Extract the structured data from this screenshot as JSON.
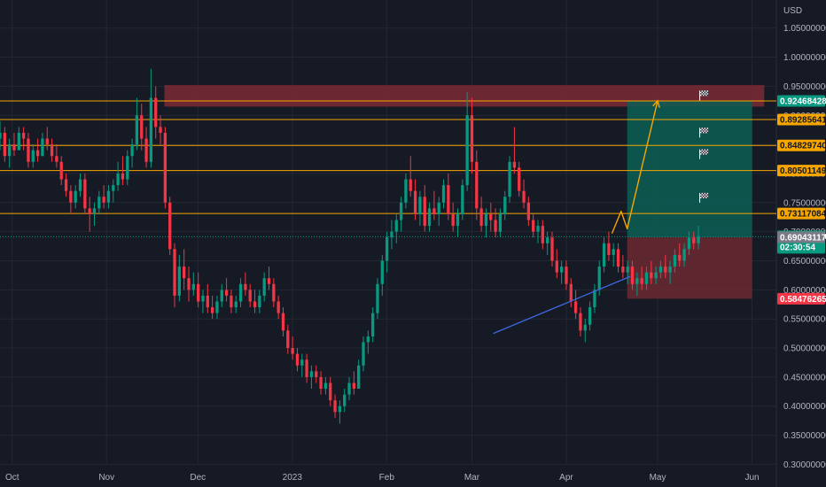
{
  "chart_data": {
    "type": "candlestick",
    "currency_label": "USD",
    "y_ticks": [
      "1.05000000",
      "1.00000000",
      "0.95000000",
      "0.90000000",
      "0.85000000",
      "0.80000000",
      "0.75000000",
      "0.70000000",
      "0.65000000",
      "0.60000000",
      "0.55000000",
      "0.50000000",
      "0.45000000",
      "0.40000000",
      "0.35000000",
      "0.30000000"
    ],
    "ylim": [
      0.29,
      1.08
    ],
    "x_ticks": [
      "Oct",
      "Nov",
      "Dec",
      "2023",
      "Feb",
      "Mar",
      "Apr",
      "May",
      "Jun"
    ],
    "x_tick_dates": [
      "2022-10-01",
      "2022-11-01",
      "2022-12-01",
      "2023-01-01",
      "2023-02-01",
      "2023-03-01",
      "2023-04-01",
      "2023-05-01",
      "2023-06-01"
    ],
    "xlim": [
      "2022-09-27",
      "2023-06-09"
    ],
    "horizontal_levels": [
      0.92468428,
      0.89285641,
      0.8482974,
      0.80501149,
      0.73117084
    ],
    "level_color": "#f7a600",
    "supply_zone": {
      "from": "2022-11-20",
      "to": "2023-06-05",
      "low": 0.915,
      "high": 0.952,
      "color": "#7a2a35"
    },
    "position": {
      "start": "2023-04-21",
      "end": "2023-06-01",
      "entry": 0.69043117,
      "target": 0.92468428,
      "stop": 0.58476265,
      "profit_color": "#0c5f55",
      "loss_color": "#6b2a33"
    },
    "trendline": {
      "from": [
        "2023-03-08",
        0.525
      ],
      "to": [
        "2023-04-22",
        0.623
      ],
      "color": "#3d66e0"
    },
    "projection": {
      "points": [
        [
          "2023-04-16",
          0.697
        ],
        [
          "2023-04-19",
          0.735
        ],
        [
          "2023-04-21",
          0.705
        ],
        [
          "2023-05-01",
          0.925
        ]
      ],
      "color": "#f7a600"
    },
    "target_flags": [
      [
        "2023-05-16",
        0.935
      ],
      [
        "2023-05-16",
        0.871
      ],
      [
        "2023-05-16",
        0.834
      ],
      [
        "2023-05-16",
        0.759
      ]
    ],
    "price_tags": [
      {
        "label": "0.92468428",
        "value": 0.92468428,
        "bg": "#089981",
        "fg": "#ffffff"
      },
      {
        "label": "0.89285641",
        "value": 0.89285641,
        "bg": "#f7a600",
        "fg": "#131722"
      },
      {
        "label": "0.84829740",
        "value": 0.8482974,
        "bg": "#f7a600",
        "fg": "#131722"
      },
      {
        "label": "0.80501149",
        "value": 0.80501149,
        "bg": "#f7a600",
        "fg": "#131722"
      },
      {
        "label": "0.73117084",
        "value": 0.73117084,
        "bg": "#f7a600",
        "fg": "#131722"
      },
      {
        "label": "0.69124789",
        "value": 0.69124789,
        "bg": "#089981",
        "fg": "#ffffff",
        "sub": "02:30:54"
      },
      {
        "label": "0.69043117",
        "value": 0.69043117,
        "bg": "#787b86",
        "fg": "#ffffff"
      },
      {
        "label": "0.58476265",
        "value": 0.58476265,
        "bg": "#f23645",
        "fg": "#ffffff"
      }
    ],
    "last_price": 0.69124789,
    "up_color": "#089981",
    "down_color": "#f23645",
    "candle_start": "2022-09-27",
    "candles": [
      [
        0.86,
        0.89,
        0.84,
        0.87
      ],
      [
        0.87,
        0.88,
        0.82,
        0.83
      ],
      [
        0.83,
        0.86,
        0.81,
        0.85
      ],
      [
        0.85,
        0.87,
        0.83,
        0.84
      ],
      [
        0.84,
        0.88,
        0.84,
        0.87
      ],
      [
        0.87,
        0.88,
        0.84,
        0.86
      ],
      [
        0.86,
        0.87,
        0.81,
        0.82
      ],
      [
        0.82,
        0.85,
        0.81,
        0.84
      ],
      [
        0.84,
        0.86,
        0.82,
        0.83
      ],
      [
        0.83,
        0.87,
        0.83,
        0.86
      ],
      [
        0.86,
        0.88,
        0.84,
        0.85
      ],
      [
        0.85,
        0.86,
        0.82,
        0.83
      ],
      [
        0.83,
        0.85,
        0.81,
        0.82
      ],
      [
        0.82,
        0.83,
        0.78,
        0.79
      ],
      [
        0.79,
        0.8,
        0.76,
        0.77
      ],
      [
        0.77,
        0.78,
        0.73,
        0.75
      ],
      [
        0.75,
        0.78,
        0.74,
        0.77
      ],
      [
        0.77,
        0.8,
        0.76,
        0.79
      ],
      [
        0.79,
        0.8,
        0.73,
        0.74
      ],
      [
        0.74,
        0.76,
        0.7,
        0.73
      ],
      [
        0.73,
        0.75,
        0.71,
        0.74
      ],
      [
        0.74,
        0.77,
        0.73,
        0.76
      ],
      [
        0.76,
        0.78,
        0.74,
        0.75
      ],
      [
        0.75,
        0.78,
        0.74,
        0.77
      ],
      [
        0.77,
        0.79,
        0.75,
        0.78
      ],
      [
        0.78,
        0.82,
        0.77,
        0.8
      ],
      [
        0.8,
        0.83,
        0.78,
        0.79
      ],
      [
        0.79,
        0.84,
        0.78,
        0.83
      ],
      [
        0.83,
        0.86,
        0.81,
        0.85
      ],
      [
        0.85,
        0.93,
        0.84,
        0.9
      ],
      [
        0.9,
        0.92,
        0.84,
        0.86
      ],
      [
        0.86,
        0.88,
        0.81,
        0.82
      ],
      [
        0.82,
        0.98,
        0.81,
        0.93
      ],
      [
        0.93,
        0.95,
        0.86,
        0.88
      ],
      [
        0.88,
        0.9,
        0.85,
        0.87
      ],
      [
        0.87,
        0.88,
        0.74,
        0.75
      ],
      [
        0.75,
        0.76,
        0.66,
        0.67
      ],
      [
        0.67,
        0.68,
        0.57,
        0.59
      ],
      [
        0.59,
        0.66,
        0.58,
        0.64
      ],
      [
        0.64,
        0.67,
        0.6,
        0.62
      ],
      [
        0.62,
        0.64,
        0.58,
        0.6
      ],
      [
        0.6,
        0.63,
        0.59,
        0.61
      ],
      [
        0.61,
        0.63,
        0.57,
        0.58
      ],
      [
        0.58,
        0.6,
        0.56,
        0.59
      ],
      [
        0.59,
        0.61,
        0.56,
        0.57
      ],
      [
        0.57,
        0.59,
        0.55,
        0.56
      ],
      [
        0.56,
        0.59,
        0.55,
        0.58
      ],
      [
        0.58,
        0.61,
        0.57,
        0.6
      ],
      [
        0.6,
        0.62,
        0.58,
        0.59
      ],
      [
        0.59,
        0.6,
        0.56,
        0.57
      ],
      [
        0.57,
        0.59,
        0.56,
        0.58
      ],
      [
        0.58,
        0.62,
        0.57,
        0.61
      ],
      [
        0.61,
        0.63,
        0.59,
        0.6
      ],
      [
        0.6,
        0.61,
        0.57,
        0.58
      ],
      [
        0.58,
        0.6,
        0.56,
        0.57
      ],
      [
        0.57,
        0.6,
        0.56,
        0.59
      ],
      [
        0.59,
        0.63,
        0.58,
        0.62
      ],
      [
        0.62,
        0.64,
        0.6,
        0.61
      ],
      [
        0.61,
        0.62,
        0.57,
        0.58
      ],
      [
        0.58,
        0.59,
        0.55,
        0.56
      ],
      [
        0.56,
        0.57,
        0.52,
        0.53
      ],
      [
        0.53,
        0.54,
        0.49,
        0.5
      ],
      [
        0.5,
        0.52,
        0.48,
        0.49
      ],
      [
        0.49,
        0.5,
        0.46,
        0.47
      ],
      [
        0.47,
        0.49,
        0.45,
        0.48
      ],
      [
        0.48,
        0.49,
        0.44,
        0.45
      ],
      [
        0.45,
        0.47,
        0.43,
        0.46
      ],
      [
        0.46,
        0.47,
        0.44,
        0.45
      ],
      [
        0.45,
        0.46,
        0.42,
        0.43
      ],
      [
        0.43,
        0.45,
        0.42,
        0.44
      ],
      [
        0.44,
        0.45,
        0.4,
        0.41
      ],
      [
        0.41,
        0.42,
        0.38,
        0.39
      ],
      [
        0.39,
        0.41,
        0.37,
        0.4
      ],
      [
        0.4,
        0.43,
        0.39,
        0.42
      ],
      [
        0.42,
        0.45,
        0.41,
        0.44
      ],
      [
        0.44,
        0.46,
        0.42,
        0.43
      ],
      [
        0.43,
        0.48,
        0.43,
        0.47
      ],
      [
        0.47,
        0.52,
        0.46,
        0.51
      ],
      [
        0.51,
        0.53,
        0.49,
        0.52
      ],
      [
        0.52,
        0.57,
        0.51,
        0.56
      ],
      [
        0.56,
        0.62,
        0.55,
        0.61
      ],
      [
        0.61,
        0.66,
        0.59,
        0.65
      ],
      [
        0.65,
        0.7,
        0.63,
        0.69
      ],
      [
        0.69,
        0.72,
        0.67,
        0.7
      ],
      [
        0.7,
        0.73,
        0.68,
        0.72
      ],
      [
        0.72,
        0.76,
        0.7,
        0.75
      ],
      [
        0.75,
        0.8,
        0.74,
        0.79
      ],
      [
        0.79,
        0.83,
        0.76,
        0.77
      ],
      [
        0.77,
        0.79,
        0.72,
        0.73
      ],
      [
        0.73,
        0.77,
        0.71,
        0.76
      ],
      [
        0.76,
        0.78,
        0.7,
        0.71
      ],
      [
        0.71,
        0.75,
        0.7,
        0.74
      ],
      [
        0.74,
        0.77,
        0.72,
        0.73
      ],
      [
        0.73,
        0.76,
        0.71,
        0.75
      ],
      [
        0.75,
        0.79,
        0.74,
        0.78
      ],
      [
        0.78,
        0.8,
        0.72,
        0.73
      ],
      [
        0.73,
        0.75,
        0.7,
        0.71
      ],
      [
        0.71,
        0.74,
        0.69,
        0.73
      ],
      [
        0.73,
        0.79,
        0.72,
        0.78
      ],
      [
        0.78,
        0.94,
        0.77,
        0.9
      ],
      [
        0.9,
        0.93,
        0.8,
        0.82
      ],
      [
        0.82,
        0.84,
        0.72,
        0.74
      ],
      [
        0.74,
        0.76,
        0.7,
        0.71
      ],
      [
        0.71,
        0.74,
        0.69,
        0.73
      ],
      [
        0.73,
        0.75,
        0.7,
        0.72
      ],
      [
        0.72,
        0.74,
        0.69,
        0.7
      ],
      [
        0.7,
        0.74,
        0.69,
        0.73
      ],
      [
        0.73,
        0.77,
        0.72,
        0.76
      ],
      [
        0.76,
        0.83,
        0.75,
        0.82
      ],
      [
        0.82,
        0.88,
        0.8,
        0.81
      ],
      [
        0.81,
        0.82,
        0.76,
        0.77
      ],
      [
        0.77,
        0.79,
        0.74,
        0.75
      ],
      [
        0.75,
        0.76,
        0.71,
        0.72
      ],
      [
        0.72,
        0.73,
        0.69,
        0.7
      ],
      [
        0.7,
        0.72,
        0.68,
        0.71
      ],
      [
        0.71,
        0.72,
        0.67,
        0.68
      ],
      [
        0.68,
        0.7,
        0.66,
        0.69
      ],
      [
        0.69,
        0.7,
        0.64,
        0.65
      ],
      [
        0.65,
        0.67,
        0.62,
        0.63
      ],
      [
        0.63,
        0.65,
        0.61,
        0.64
      ],
      [
        0.64,
        0.65,
        0.6,
        0.61
      ],
      [
        0.61,
        0.62,
        0.57,
        0.58
      ],
      [
        0.58,
        0.6,
        0.55,
        0.56
      ],
      [
        0.56,
        0.57,
        0.52,
        0.53
      ],
      [
        0.53,
        0.55,
        0.51,
        0.54
      ],
      [
        0.54,
        0.58,
        0.53,
        0.57
      ],
      [
        0.57,
        0.61,
        0.56,
        0.6
      ],
      [
        0.6,
        0.65,
        0.59,
        0.64
      ],
      [
        0.64,
        0.69,
        0.63,
        0.68
      ],
      [
        0.68,
        0.7,
        0.65,
        0.66
      ],
      [
        0.66,
        0.68,
        0.64,
        0.67
      ],
      [
        0.67,
        0.68,
        0.63,
        0.64
      ],
      [
        0.64,
        0.66,
        0.62,
        0.63
      ],
      [
        0.63,
        0.65,
        0.61,
        0.64
      ],
      [
        0.64,
        0.65,
        0.6,
        0.61
      ],
      [
        0.61,
        0.63,
        0.59,
        0.62
      ],
      [
        0.62,
        0.64,
        0.6,
        0.61
      ],
      [
        0.61,
        0.64,
        0.6,
        0.63
      ],
      [
        0.63,
        0.65,
        0.61,
        0.62
      ],
      [
        0.62,
        0.64,
        0.61,
        0.63
      ],
      [
        0.63,
        0.65,
        0.62,
        0.64
      ],
      [
        0.64,
        0.66,
        0.62,
        0.63
      ],
      [
        0.63,
        0.65,
        0.61,
        0.64
      ],
      [
        0.64,
        0.67,
        0.63,
        0.66
      ],
      [
        0.66,
        0.68,
        0.64,
        0.65
      ],
      [
        0.65,
        0.68,
        0.64,
        0.67
      ],
      [
        0.67,
        0.7,
        0.66,
        0.69
      ],
      [
        0.69,
        0.7,
        0.67,
        0.68
      ],
      [
        0.68,
        0.71,
        0.67,
        0.691
      ]
    ]
  }
}
